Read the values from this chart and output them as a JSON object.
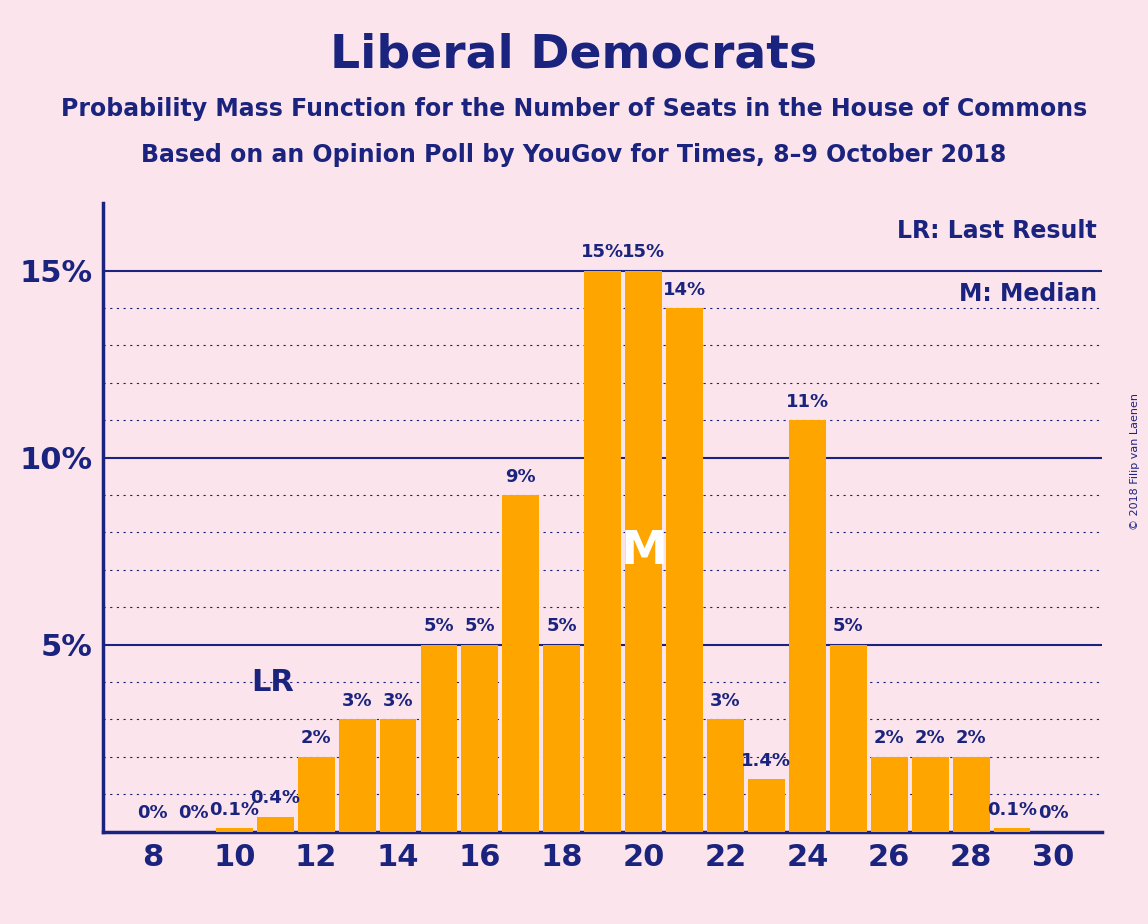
{
  "title": "Liberal Democrats",
  "subtitle1": "Probability Mass Function for the Number of Seats in the House of Commons",
  "subtitle2": "Based on an Opinion Poll by YouGov for Times, 8–9 October 2018",
  "copyright": "© 2018 Filip van Laenen",
  "legend_lr": "LR: Last Result",
  "legend_m": "M: Median",
  "background_color": "#fce4ec",
  "bar_color": "#FFA500",
  "text_color": "#1a237e",
  "line_color": "#1a237e",
  "seats": [
    8,
    9,
    10,
    11,
    12,
    13,
    14,
    15,
    16,
    17,
    18,
    19,
    20,
    21,
    22,
    23,
    24,
    25,
    26,
    27,
    28,
    29,
    30
  ],
  "probabilities": [
    0.0,
    0.0,
    0.1,
    0.4,
    2.0,
    3.0,
    3.0,
    5.0,
    5.0,
    9.0,
    5.0,
    15.0,
    15.0,
    14.0,
    3.0,
    1.4,
    11.0,
    5.0,
    2.0,
    2.0,
    2.0,
    0.1,
    0.0
  ],
  "labels": [
    "0%",
    "0%",
    "0.1%",
    "0.4%",
    "2%",
    "3%",
    "3%",
    "5%",
    "5%",
    "9%",
    "5%",
    "15%",
    "15%",
    "14%",
    "3%",
    "1.4%",
    "11%",
    "5%",
    "2%",
    "2%",
    "2%",
    "0.1%",
    "0%"
  ],
  "lr_seat": 12,
  "median_seat": 20,
  "ylim_max": 16.8,
  "xlabel_seats": [
    8,
    10,
    12,
    14,
    16,
    18,
    20,
    22,
    24,
    26,
    28,
    30
  ],
  "title_fontsize": 34,
  "subtitle_fontsize": 17,
  "label_fontsize": 13,
  "tick_fontsize": 22,
  "median_label_fontsize": 34,
  "lr_label_fontsize": 22,
  "legend_fontsize": 17
}
